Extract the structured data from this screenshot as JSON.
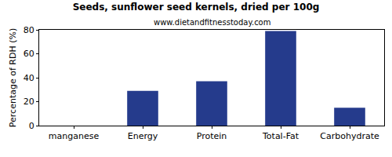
{
  "chart_data": {
    "type": "bar",
    "title": "Seeds, sunflower seed kernels, dried per 100g",
    "subtitle": "www.dietandfitnesstoday.com",
    "y_label": "Percentage of RDH (%)",
    "categories": [
      "manganese",
      "Energy",
      "Protein",
      "Total-Fat",
      "Carbohydrate"
    ],
    "values": [
      0,
      29,
      37,
      79,
      15
    ],
    "color": "#253b8c",
    "ylim": [
      0,
      80
    ],
    "yticks": [
      0,
      20,
      40,
      60,
      80
    ],
    "grid": false
  }
}
